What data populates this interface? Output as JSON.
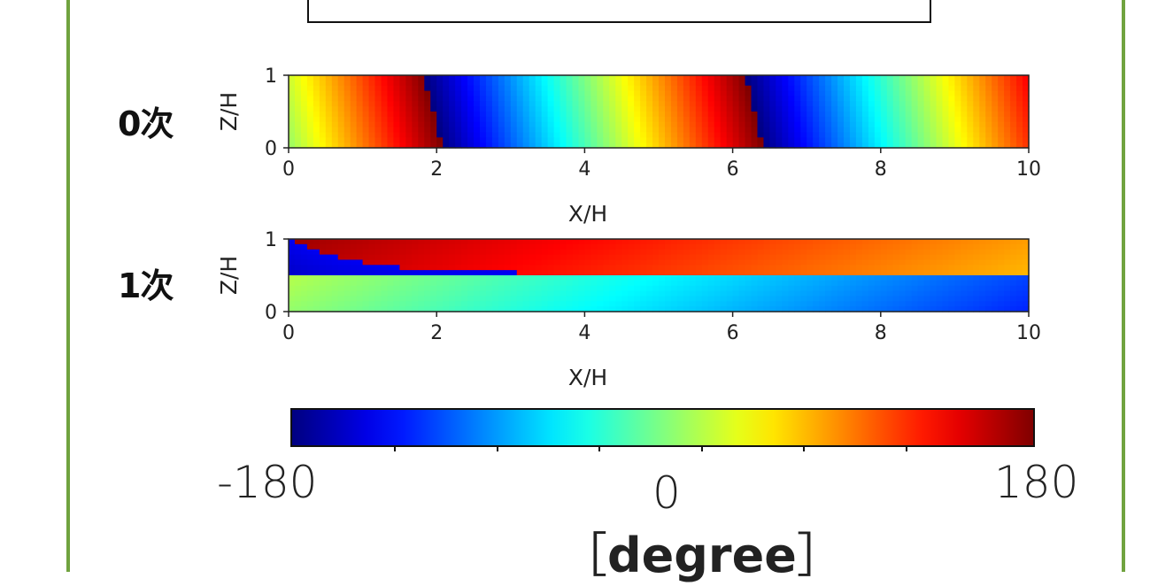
{
  "colormap": "jet",
  "accent_border_color": "#70a33f",
  "chart_data": [
    {
      "type": "heatmap",
      "row_label": "0次",
      "xlabel": "X/H",
      "ylabel": "Z/H",
      "xlim": [
        0,
        10
      ],
      "ylim": [
        0,
        1
      ],
      "x_ticks": [
        "0",
        "2",
        "4",
        "6",
        "8",
        "10"
      ],
      "y_ticks": [
        "0",
        "1"
      ],
      "description_of_field": "phase increases linearly with X from -180 to 180, wrapping every ~4.35 H",
      "phase_wraps_at_x_bottom": [
        2.1,
        6.45
      ],
      "phase_wraps_at_x_top": [
        1.95,
        6.2
      ],
      "phase_at_x0": 10,
      "phase_gradient_deg_per_unit_x": 83
    },
    {
      "type": "heatmap",
      "row_label": "1次",
      "xlabel": "X/H",
      "ylabel": "Z/H",
      "xlim": [
        0,
        10
      ],
      "ylim": [
        0,
        1
      ],
      "x_ticks": [
        "0",
        "2",
        "4",
        "6",
        "8",
        "10"
      ],
      "y_ticks": [
        "0",
        "1"
      ],
      "lower_layer_z_max": 0.52,
      "lower_layer_phase_range": [
        20,
        -110
      ],
      "upper_layer_phase_range": [
        170,
        80
      ]
    }
  ],
  "colorbar": {
    "min_label": "-180",
    "mid_label": "0",
    "max_label": "180",
    "range": [
      -180,
      180
    ],
    "unit_label": "degree",
    "bracket_open": "［",
    "bracket_close": "］"
  }
}
